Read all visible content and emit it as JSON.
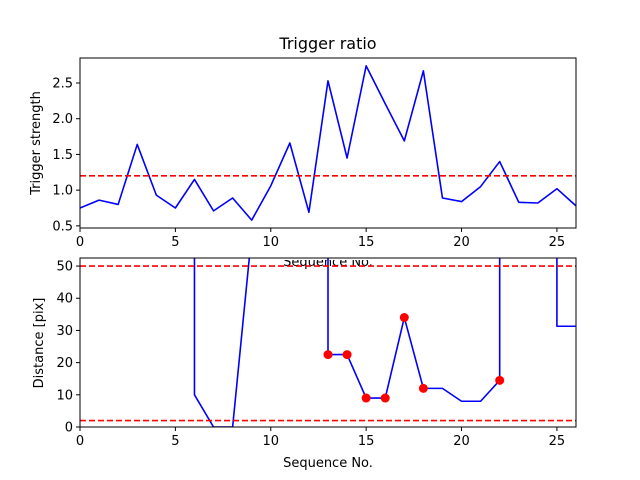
{
  "chart_data": [
    {
      "type": "line",
      "title": "Trigger ratio",
      "xlabel": "Sequence No.",
      "ylabel": "Trigger strength",
      "xlim": [
        0,
        26
      ],
      "ylim": [
        0.47,
        2.85
      ],
      "xticks": [
        0,
        5,
        10,
        15,
        20,
        25
      ],
      "yticks": [
        0.5,
        1.0,
        1.5,
        2.0,
        2.5
      ],
      "ytick_labels": [
        "0.5",
        "1.0",
        "1.5",
        "2.0",
        "2.5"
      ],
      "grid": false,
      "series": [
        {
          "color": "#0000ff",
          "x": [
            0,
            1,
            2,
            3,
            4,
            5,
            6,
            7,
            8,
            9,
            10,
            11,
            12,
            13,
            14,
            15,
            16,
            17,
            18,
            19,
            20,
            21,
            22,
            23,
            24,
            25,
            26
          ],
          "y": [
            0.75,
            0.86,
            0.8,
            1.64,
            0.93,
            0.75,
            1.15,
            0.71,
            0.89,
            0.58,
            1.06,
            1.66,
            0.69,
            2.53,
            1.45,
            2.74,
            2.21,
            1.69,
            2.67,
            0.89,
            0.84,
            1.05,
            1.4,
            0.83,
            0.82,
            1.02,
            0.78
          ]
        }
      ],
      "hlines": [
        {
          "y": 1.2,
          "color": "#ff0000",
          "style": "dashed"
        }
      ]
    },
    {
      "type": "line",
      "title": "",
      "xlabel": "Sequence No.",
      "ylabel": "Distance [pix]",
      "xlim": [
        0,
        26
      ],
      "ylim": [
        0,
        52.5
      ],
      "xticks": [
        0,
        5,
        10,
        15,
        20,
        25
      ],
      "yticks": [
        0,
        10,
        20,
        30,
        40,
        50
      ],
      "grid": false,
      "series": [
        {
          "color": "#0000ff",
          "x": [
            6,
            6,
            7,
            8,
            9,
            9,
            13,
            13,
            14,
            15,
            16,
            17,
            18,
            19,
            20,
            21,
            22,
            22,
            25,
            25,
            26
          ],
          "y": [
            60,
            10,
            0,
            0,
            60,
            null,
            60,
            22.5,
            22.5,
            9,
            9,
            34,
            12,
            12,
            8,
            8,
            14.5,
            60,
            60,
            31.3,
            31.3
          ]
        }
      ],
      "markers": {
        "color": "#ff0000",
        "x": [
          13,
          14,
          15,
          16,
          17,
          18,
          22
        ],
        "y": [
          22.5,
          22.5,
          9,
          9,
          34,
          12,
          14.5
        ]
      },
      "hlines": [
        {
          "y": 50,
          "color": "#ff0000",
          "style": "dashed"
        },
        {
          "y": 2,
          "color": "#ff0000",
          "style": "dashed"
        }
      ]
    }
  ]
}
